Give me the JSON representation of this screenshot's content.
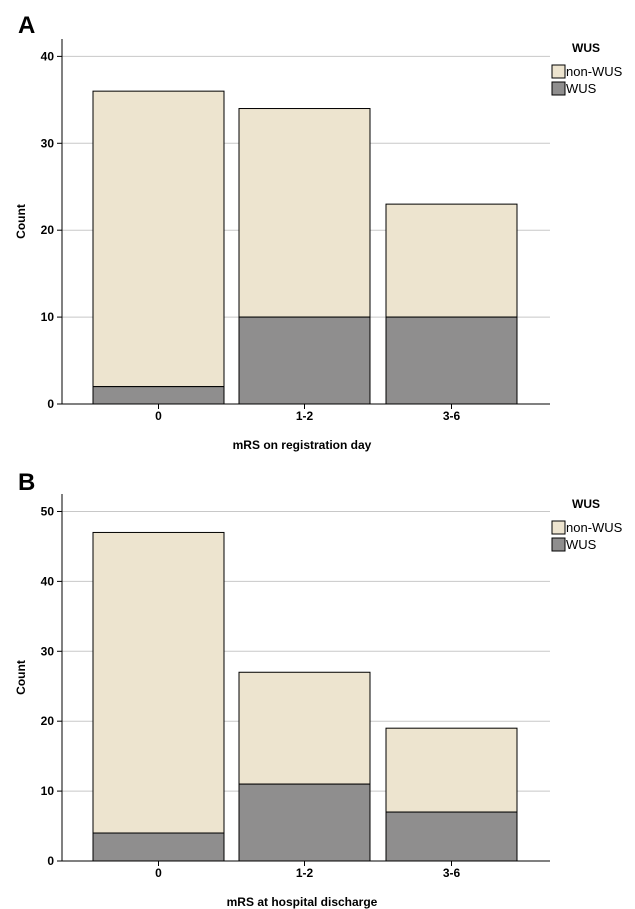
{
  "colors": {
    "non_wus": "#ede4cf",
    "wus": "#8f8e8e",
    "grid": "#c8c8c8",
    "axis": "#000000"
  },
  "chart_data": [
    {
      "panel": "A",
      "type": "bar",
      "stacked": true,
      "categories": [
        "0",
        "1-2",
        "3-6"
      ],
      "series": [
        {
          "name": "WUS",
          "values": [
            2,
            10,
            10
          ]
        },
        {
          "name": "non-WUS",
          "values": [
            34,
            24,
            13
          ]
        }
      ],
      "totals": [
        36,
        34,
        23
      ],
      "xlabel": "mRS on registration day",
      "ylabel": "Count",
      "ylim": [
        0,
        42
      ],
      "yticks": [
        0,
        10,
        20,
        30,
        40
      ],
      "grid": true,
      "legend": {
        "title": "WUS",
        "position": "top-right",
        "entries": [
          "non-WUS",
          "WUS"
        ]
      }
    },
    {
      "panel": "B",
      "type": "bar",
      "stacked": true,
      "categories": [
        "0",
        "1-2",
        "3-6"
      ],
      "series": [
        {
          "name": "WUS",
          "values": [
            4,
            11,
            7
          ]
        },
        {
          "name": "non-WUS",
          "values": [
            43,
            16,
            12
          ]
        }
      ],
      "totals": [
        47,
        27,
        19
      ],
      "xlabel": "mRS at hospital discharge",
      "ylabel": "Count",
      "ylim": [
        0,
        52.5
      ],
      "yticks": [
        0,
        10,
        20,
        30,
        40,
        50
      ],
      "grid": true,
      "legend": {
        "title": "WUS",
        "position": "top-right",
        "entries": [
          "non-WUS",
          "WUS"
        ]
      }
    }
  ]
}
